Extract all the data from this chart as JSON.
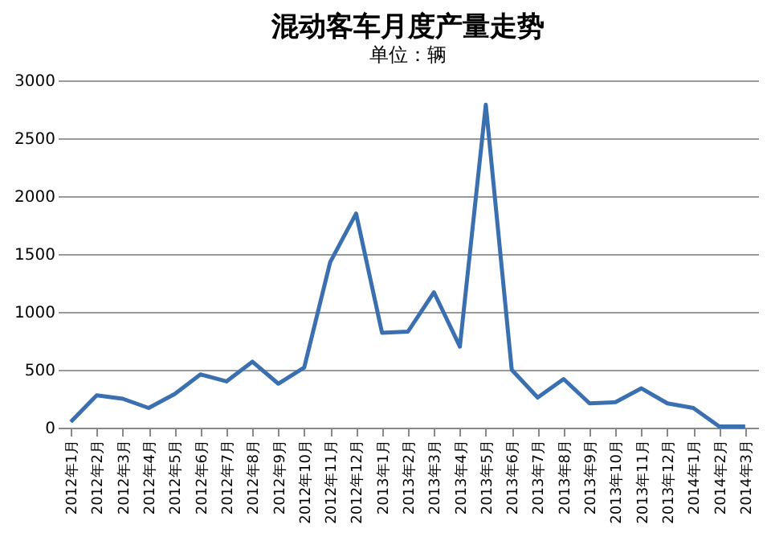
{
  "chart_data": {
    "type": "line",
    "title": "混动客车月度产量走势",
    "subtitle": "单位：辆",
    "categories": [
      "2012年1月",
      "2012年2月",
      "2012年3月",
      "2012年4月",
      "2012年5月",
      "2012年6月",
      "2012年7月",
      "2012年8月",
      "2012年9月",
      "2012年10月",
      "2012年11月",
      "2012年12月",
      "2013年1月",
      "2013年2月",
      "2013年3月",
      "2013年4月",
      "2013年5月",
      "2013年6月",
      "2013年7月",
      "2013年8月",
      "2013年9月",
      "2013年10月",
      "2013年11月",
      "2013年12月",
      "2014年1月",
      "2014年2月",
      "2014年3月"
    ],
    "series": [
      {
        "color": "#3a6fb0",
        "values": [
          50,
          280,
          250,
          170,
          290,
          460,
          400,
          570,
          380,
          520,
          1430,
          1850,
          820,
          830,
          1170,
          700,
          2790,
          500,
          260,
          420,
          210,
          220,
          340,
          210,
          170,
          10,
          10
        ]
      }
    ],
    "ylim": [
      0,
      3000
    ],
    "yticks": [
      0,
      500,
      1000,
      1500,
      2000,
      2500,
      3000
    ],
    "grid": "y",
    "marker": "none",
    "line_style": "solid"
  }
}
